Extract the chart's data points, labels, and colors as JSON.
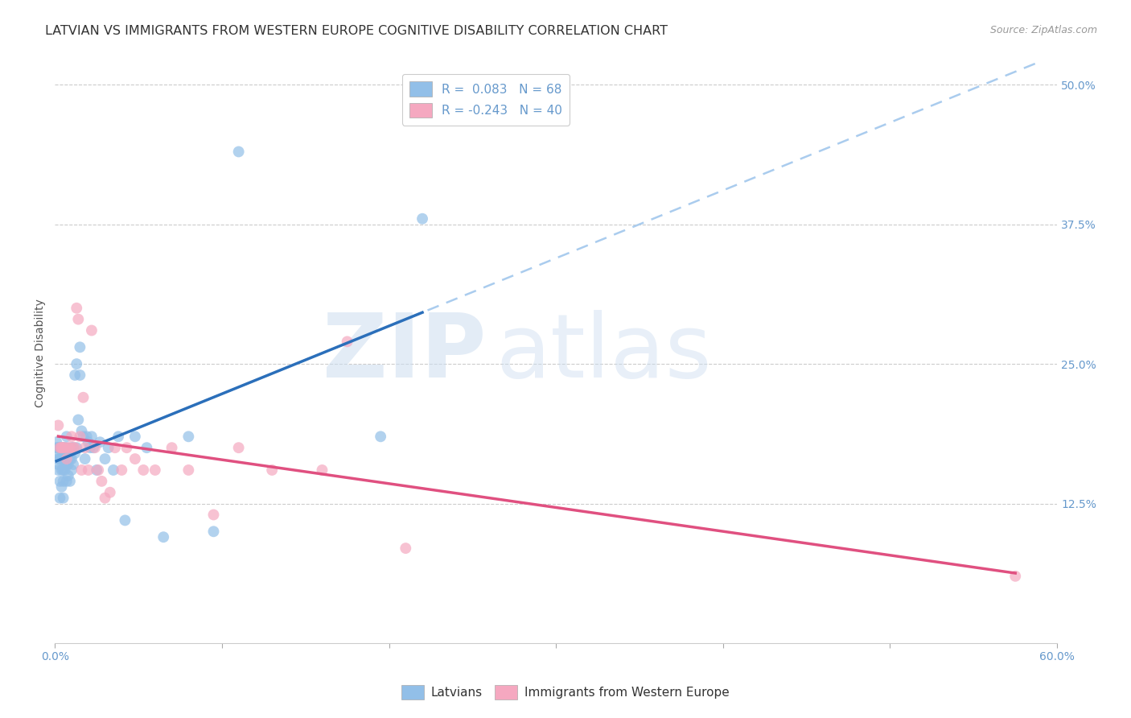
{
  "title": "LATVIAN VS IMMIGRANTS FROM WESTERN EUROPE COGNITIVE DISABILITY CORRELATION CHART",
  "source": "Source: ZipAtlas.com",
  "ylabel": "Cognitive Disability",
  "watermark_zip": "ZIP",
  "watermark_atlas": "atlas",
  "xlim": [
    0.0,
    0.6
  ],
  "ylim": [
    0.0,
    0.52
  ],
  "xtick_positions": [
    0.0,
    0.1,
    0.2,
    0.3,
    0.4,
    0.5,
    0.6
  ],
  "xticklabels": [
    "0.0%",
    "",
    "",
    "",
    "",
    "",
    "60.0%"
  ],
  "yticks_right": [
    0.125,
    0.25,
    0.375,
    0.5
  ],
  "ytick_right_labels": [
    "12.5%",
    "25.0%",
    "37.5%",
    "50.0%"
  ],
  "latvian_color": "#92bfe8",
  "immigrant_color": "#f5a8c0",
  "latvian_line_color": "#2b6fba",
  "immigrant_line_color": "#e05080",
  "trendline_dash_color": "#aaccee",
  "legend_text1": "R =  0.083   N = 68",
  "legend_text2": "R = -0.243   N = 40",
  "legend_label1": "Latvians",
  "legend_label2": "Immigrants from Western Europe",
  "tick_color": "#6699cc",
  "grid_color": "#cccccc",
  "title_color": "#333333",
  "source_color": "#999999",
  "latvian_x": [
    0.001,
    0.001,
    0.001,
    0.002,
    0.002,
    0.002,
    0.002,
    0.003,
    0.003,
    0.003,
    0.003,
    0.004,
    0.004,
    0.004,
    0.004,
    0.005,
    0.005,
    0.005,
    0.005,
    0.005,
    0.006,
    0.006,
    0.006,
    0.006,
    0.007,
    0.007,
    0.007,
    0.007,
    0.008,
    0.008,
    0.008,
    0.009,
    0.009,
    0.01,
    0.01,
    0.01,
    0.011,
    0.011,
    0.012,
    0.012,
    0.013,
    0.013,
    0.014,
    0.015,
    0.015,
    0.016,
    0.017,
    0.018,
    0.019,
    0.02,
    0.021,
    0.022,
    0.023,
    0.025,
    0.027,
    0.03,
    0.032,
    0.035,
    0.038,
    0.042,
    0.048,
    0.055,
    0.065,
    0.08,
    0.095,
    0.11,
    0.195,
    0.22
  ],
  "latvian_y": [
    0.17,
    0.175,
    0.18,
    0.155,
    0.16,
    0.165,
    0.175,
    0.13,
    0.145,
    0.165,
    0.175,
    0.14,
    0.155,
    0.165,
    0.175,
    0.13,
    0.145,
    0.155,
    0.165,
    0.175,
    0.155,
    0.16,
    0.17,
    0.175,
    0.145,
    0.16,
    0.175,
    0.185,
    0.15,
    0.16,
    0.17,
    0.145,
    0.165,
    0.155,
    0.165,
    0.175,
    0.16,
    0.175,
    0.17,
    0.24,
    0.25,
    0.175,
    0.2,
    0.265,
    0.24,
    0.19,
    0.185,
    0.165,
    0.185,
    0.18,
    0.175,
    0.185,
    0.175,
    0.155,
    0.18,
    0.165,
    0.175,
    0.155,
    0.185,
    0.11,
    0.185,
    0.175,
    0.095,
    0.185,
    0.1,
    0.44,
    0.185,
    0.38
  ],
  "immigrant_x": [
    0.002,
    0.003,
    0.004,
    0.004,
    0.005,
    0.006,
    0.007,
    0.008,
    0.009,
    0.01,
    0.011,
    0.012,
    0.013,
    0.014,
    0.015,
    0.016,
    0.017,
    0.018,
    0.02,
    0.022,
    0.024,
    0.026,
    0.028,
    0.03,
    0.033,
    0.036,
    0.04,
    0.043,
    0.048,
    0.053,
    0.06,
    0.07,
    0.08,
    0.095,
    0.11,
    0.13,
    0.16,
    0.175,
    0.21,
    0.575
  ],
  "immigrant_y": [
    0.195,
    0.175,
    0.175,
    0.175,
    0.175,
    0.175,
    0.165,
    0.175,
    0.175,
    0.185,
    0.175,
    0.175,
    0.3,
    0.29,
    0.185,
    0.155,
    0.22,
    0.175,
    0.155,
    0.28,
    0.175,
    0.155,
    0.145,
    0.13,
    0.135,
    0.175,
    0.155,
    0.175,
    0.165,
    0.155,
    0.155,
    0.175,
    0.155,
    0.115,
    0.175,
    0.155,
    0.155,
    0.27,
    0.085,
    0.06
  ],
  "title_fontsize": 11.5,
  "axis_label_fontsize": 10,
  "tick_fontsize": 10,
  "legend_fontsize": 11,
  "source_fontsize": 9,
  "marker_size": 100,
  "marker_alpha": 0.7
}
